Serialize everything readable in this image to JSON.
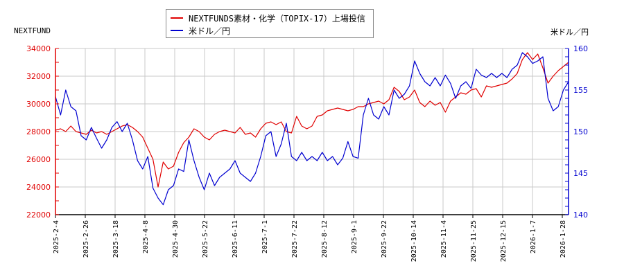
{
  "chart_data": {
    "type": "line",
    "title": "",
    "legend": {
      "position": "top",
      "entries": [
        {
          "label": "NEXTFUNDS素材・化学（TOPIX-17）上場投信",
          "color": "#e00000"
        },
        {
          "label": "米ドル／円",
          "color": "#0000d0"
        }
      ]
    },
    "left_axis": {
      "title": "NEXTFUND",
      "color": "#e00000",
      "min": 22000,
      "max": 34000,
      "ticks": [
        22000,
        24000,
        26000,
        28000,
        30000,
        32000,
        34000
      ]
    },
    "right_axis": {
      "title": "米ドル／円",
      "color": "#0000d0",
      "min": 140,
      "max": 160,
      "ticks": [
        140,
        145,
        150,
        155,
        160
      ]
    },
    "x_tick_labels": [
      "2025-2-4",
      "2025-2-26",
      "2025-3-18",
      "2025-4-8",
      "2025-4-30",
      "2025-5-22",
      "2025-6-11",
      "2025-7-1",
      "2025-7-22",
      "2025-8-12",
      "2025-9-1",
      "2025-9-22",
      "2025-10-14",
      "2025-11-4",
      "2025-11-25",
      "2025-12-15",
      "2026-1-7",
      "2026-1-28"
    ],
    "grid": true,
    "series": [
      {
        "name": "NEXTFUNDS素材・化学（TOPIX-17）上場投信",
        "axis": "left",
        "x_fraction": [
          0,
          0.01,
          0.02,
          0.03,
          0.04,
          0.05,
          0.06,
          0.07,
          0.08,
          0.09,
          0.1,
          0.11,
          0.12,
          0.13,
          0.14,
          0.15,
          0.16,
          0.17,
          0.18,
          0.19,
          0.2,
          0.21,
          0.22,
          0.23,
          0.24,
          0.25,
          0.26,
          0.27,
          0.28,
          0.29,
          0.3,
          0.31,
          0.32,
          0.33,
          0.34,
          0.35,
          0.36,
          0.37,
          0.38,
          0.39,
          0.4,
          0.41,
          0.42,
          0.43,
          0.44,
          0.45,
          0.46,
          0.47,
          0.48,
          0.49,
          0.5,
          0.51,
          0.52,
          0.53,
          0.54,
          0.55,
          0.56,
          0.57,
          0.58,
          0.59,
          0.6,
          0.61,
          0.62,
          0.63,
          0.64,
          0.65,
          0.66,
          0.67,
          0.68,
          0.69,
          0.7,
          0.71,
          0.72,
          0.73,
          0.74,
          0.75,
          0.76,
          0.77,
          0.78,
          0.79,
          0.8,
          0.81,
          0.82,
          0.83,
          0.84,
          0.85,
          0.86,
          0.87,
          0.88,
          0.89,
          0.9,
          0.91,
          0.92,
          0.93,
          0.94,
          0.95,
          0.96,
          0.97,
          0.98,
          0.99,
          1.0
        ],
        "values": [
          28100,
          28200,
          28000,
          28400,
          28000,
          27900,
          27800,
          28100,
          27900,
          28000,
          27800,
          28000,
          28200,
          28400,
          28500,
          28300,
          28000,
          27600,
          26800,
          26000,
          24000,
          25800,
          25300,
          25500,
          26500,
          27200,
          27600,
          28200,
          28000,
          27600,
          27400,
          27800,
          28000,
          28100,
          28000,
          27900,
          28300,
          27800,
          27900,
          27600,
          28200,
          28600,
          28700,
          28500,
          28700,
          28000,
          27900,
          29100,
          28400,
          28200,
          28400,
          29100,
          29200,
          29500,
          29600,
          29700,
          29600,
          29500,
          29600,
          29800,
          29800,
          30000,
          30100,
          30200,
          30000,
          30300,
          31200,
          30900,
          30300,
          30500,
          31000,
          30100,
          29800,
          30200,
          29900,
          30100,
          29400,
          30200,
          30500,
          30800,
          30700,
          31000,
          31100,
          30500,
          31300,
          31200,
          31300,
          31400,
          31500,
          31800,
          32200,
          33200,
          33700,
          33200,
          33600,
          32600,
          31500,
          32000,
          32400,
          32700,
          33000
        ]
      },
      {
        "name": "米ドル／円",
        "axis": "right",
        "x_fraction": [
          0,
          0.01,
          0.02,
          0.03,
          0.04,
          0.05,
          0.06,
          0.07,
          0.08,
          0.09,
          0.1,
          0.11,
          0.12,
          0.13,
          0.14,
          0.15,
          0.16,
          0.17,
          0.18,
          0.19,
          0.2,
          0.21,
          0.22,
          0.23,
          0.24,
          0.25,
          0.26,
          0.27,
          0.28,
          0.29,
          0.3,
          0.31,
          0.32,
          0.33,
          0.34,
          0.35,
          0.36,
          0.37,
          0.38,
          0.39,
          0.4,
          0.41,
          0.42,
          0.43,
          0.44,
          0.45,
          0.46,
          0.47,
          0.48,
          0.49,
          0.5,
          0.51,
          0.52,
          0.53,
          0.54,
          0.55,
          0.56,
          0.57,
          0.58,
          0.59,
          0.6,
          0.61,
          0.62,
          0.63,
          0.64,
          0.65,
          0.66,
          0.67,
          0.68,
          0.69,
          0.7,
          0.71,
          0.72,
          0.73,
          0.74,
          0.75,
          0.76,
          0.77,
          0.78,
          0.79,
          0.8,
          0.81,
          0.82,
          0.83,
          0.84,
          0.85,
          0.86,
          0.87,
          0.88,
          0.89,
          0.9,
          0.91,
          0.92,
          0.93,
          0.94,
          0.95,
          0.96,
          0.97,
          0.98,
          0.99,
          1.0
        ],
        "values": [
          154.2,
          152.0,
          155.0,
          153.0,
          152.5,
          149.5,
          149.0,
          150.5,
          149.2,
          148.0,
          149.0,
          150.5,
          151.2,
          150.0,
          151.0,
          149.0,
          146.5,
          145.5,
          147.0,
          143.2,
          142.0,
          141.2,
          143.0,
          143.5,
          145.5,
          145.2,
          149.0,
          146.5,
          144.5,
          143.0,
          145.0,
          143.5,
          144.5,
          145.0,
          145.5,
          146.5,
          145.0,
          144.5,
          144.0,
          145.0,
          147.0,
          149.5,
          150.0,
          147.0,
          148.5,
          151.0,
          147.0,
          146.5,
          147.5,
          146.5,
          147.0,
          146.5,
          147.5,
          146.5,
          147.0,
          146.0,
          146.8,
          148.8,
          147.0,
          146.8,
          152.0,
          154.0,
          152.0,
          151.5,
          153.0,
          152.0,
          155.0,
          154.0,
          154.5,
          155.5,
          158.5,
          157.0,
          156.0,
          155.5,
          156.5,
          155.5,
          156.8,
          155.8,
          154.0,
          155.5,
          156.0,
          155.2,
          157.5,
          156.8,
          156.5,
          157.0,
          156.5,
          157.0,
          156.5,
          157.5,
          158.0,
          159.5,
          159.0,
          158.2,
          158.5,
          159.0,
          154.0,
          152.5,
          153.0,
          155.0,
          156.0
        ]
      }
    ]
  }
}
